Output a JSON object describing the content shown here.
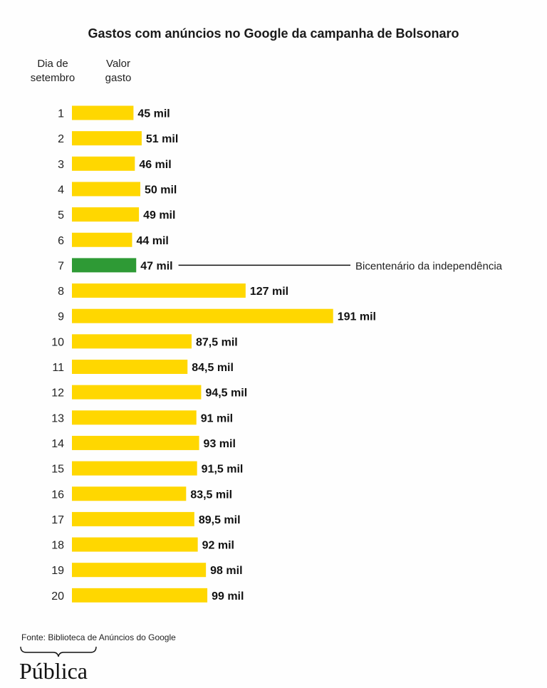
{
  "header": {
    "title": "Gastos com anúncios no Google da campanha de Bolsonaro",
    "col_day": "Dia de\nsetembro",
    "col_value": "Valor\ngasto"
  },
  "annotation": "Bicentenário da independência",
  "footer": {
    "source": "Fonte: Biblioteca de Anúncios do Google",
    "logo": "Pública"
  },
  "colors": {
    "bar": "#FFD700",
    "highlight": "#2E9A35",
    "text": "#111111"
  },
  "chart_data": {
    "type": "bar",
    "orientation": "horizontal",
    "title": "Gastos com anúncios no Google da campanha de Bolsonaro",
    "categories": [
      "1",
      "2",
      "3",
      "4",
      "5",
      "6",
      "7",
      "8",
      "9",
      "10",
      "11",
      "12",
      "13",
      "14",
      "15",
      "16",
      "17",
      "18",
      "19",
      "20"
    ],
    "values": [
      45,
      51,
      46,
      50,
      49,
      44,
      47,
      127,
      191,
      87.5,
      84.5,
      94.5,
      91,
      93,
      91.5,
      83.5,
      89.5,
      92,
      98,
      99
    ],
    "labels": [
      "45 mil",
      "51 mil",
      "46 mil",
      "50 mil",
      "49 mil",
      "44 mil",
      "47 mil",
      "127 mil",
      "191 mil",
      "87,5 mil",
      "84,5 mil",
      "94,5 mil",
      "91 mil",
      "93 mil",
      "91,5 mil",
      "83,5 mil",
      "89,5 mil",
      "92 mil",
      "98 mil",
      "99 mil"
    ],
    "highlight_index": 6,
    "annotated_category": "7"
  }
}
